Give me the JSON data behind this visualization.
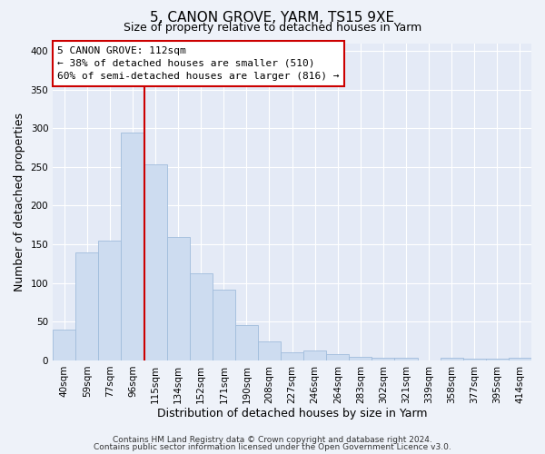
{
  "title": "5, CANON GROVE, YARM, TS15 9XE",
  "subtitle": "Size of property relative to detached houses in Yarm",
  "xlabel": "Distribution of detached houses by size in Yarm",
  "ylabel": "Number of detached properties",
  "bar_labels": [
    "40sqm",
    "59sqm",
    "77sqm",
    "96sqm",
    "115sqm",
    "134sqm",
    "152sqm",
    "171sqm",
    "190sqm",
    "208sqm",
    "227sqm",
    "246sqm",
    "264sqm",
    "283sqm",
    "302sqm",
    "321sqm",
    "339sqm",
    "358sqm",
    "377sqm",
    "395sqm",
    "414sqm"
  ],
  "bar_values": [
    40,
    140,
    155,
    295,
    253,
    160,
    113,
    92,
    46,
    25,
    10,
    13,
    8,
    5,
    3,
    3,
    0,
    3,
    2,
    2,
    3
  ],
  "bar_color": "#cddcf0",
  "bar_edge_color": "#a0bcdc",
  "vline_x": 3.5,
  "vline_color": "#cc0000",
  "annotation_title": "5 CANON GROVE: 112sqm",
  "annotation_line1": "← 38% of detached houses are smaller (510)",
  "annotation_line2": "60% of semi-detached houses are larger (816) →",
  "annotation_box_color": "#ffffff",
  "annotation_box_edge": "#cc0000",
  "ylim": [
    0,
    410
  ],
  "yticks": [
    0,
    50,
    100,
    150,
    200,
    250,
    300,
    350,
    400
  ],
  "footer1": "Contains HM Land Registry data © Crown copyright and database right 2024.",
  "footer2": "Contains public sector information licensed under the Open Government Licence v3.0.",
  "bg_color": "#eef2f9",
  "plot_bg_color": "#e4eaf6",
  "title_fontsize": 11,
  "subtitle_fontsize": 9,
  "axis_label_fontsize": 9,
  "tick_fontsize": 7.5,
  "footer_fontsize": 6.5,
  "annotation_fontsize": 8
}
